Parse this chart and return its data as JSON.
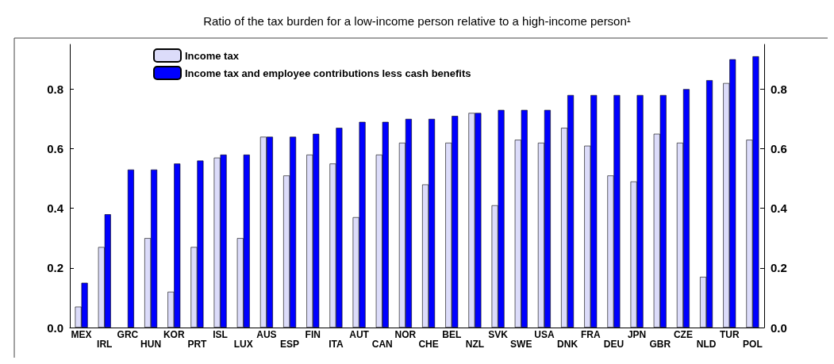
{
  "chart_data": {
    "type": "bar",
    "title": "Ratio of the tax burden for a low-income person relative to a high-income person¹",
    "categories": [
      "MEX",
      "IRL",
      "GRC",
      "HUN",
      "KOR",
      "PRT",
      "ISL",
      "LUX",
      "AUS",
      "ESP",
      "FIN",
      "ITA",
      "AUT",
      "CAN",
      "NOR",
      "CHE",
      "BEL",
      "NZL",
      "SVK",
      "SWE",
      "USA",
      "DNK",
      "FRA",
      "DEU",
      "JPN",
      "GBR",
      "CZE",
      "NLD",
      "TUR",
      "POL"
    ],
    "series": [
      {
        "name": "Income tax",
        "color": "#dcdcfa",
        "values": [
          0.07,
          0.27,
          null,
          0.3,
          0.12,
          0.27,
          0.57,
          0.3,
          0.64,
          0.51,
          0.58,
          0.55,
          0.37,
          0.58,
          0.62,
          0.48,
          0.62,
          0.72,
          0.41,
          0.63,
          0.62,
          0.67,
          0.61,
          0.51,
          0.49,
          0.65,
          0.62,
          0.17,
          0.82,
          0.63
        ]
      },
      {
        "name": "Income tax and employee contributions less cash benefits",
        "color": "#0000ff",
        "values": [
          0.15,
          0.38,
          0.53,
          0.53,
          0.55,
          0.56,
          0.58,
          0.58,
          0.64,
          0.64,
          0.65,
          0.67,
          0.69,
          0.69,
          0.7,
          0.7,
          0.71,
          0.72,
          0.73,
          0.73,
          0.73,
          0.78,
          0.78,
          0.78,
          0.78,
          0.78,
          0.8,
          0.83,
          0.9,
          0.91
        ]
      }
    ],
    "ylim": [
      0,
      0.95
    ],
    "yticks": [
      {
        "value": 0,
        "label": "0.0"
      },
      {
        "value": 0.2,
        "label": "0.2"
      },
      {
        "value": 0.4,
        "label": "0.4"
      },
      {
        "value": 0.6,
        "label": "0.6"
      },
      {
        "value": 0.8,
        "label": "0.8"
      }
    ],
    "y2lim": [
      0,
      0.95
    ],
    "y2ticks": [
      {
        "value": 0,
        "label": "0.0"
      },
      {
        "value": 0.2,
        "label": "0.2"
      },
      {
        "value": 0.4,
        "label": "0.4"
      },
      {
        "value": 0.6,
        "label": "0.6"
      },
      {
        "value": 0.8,
        "label": "0.8"
      }
    ],
    "grid": false,
    "legend": "top left"
  }
}
